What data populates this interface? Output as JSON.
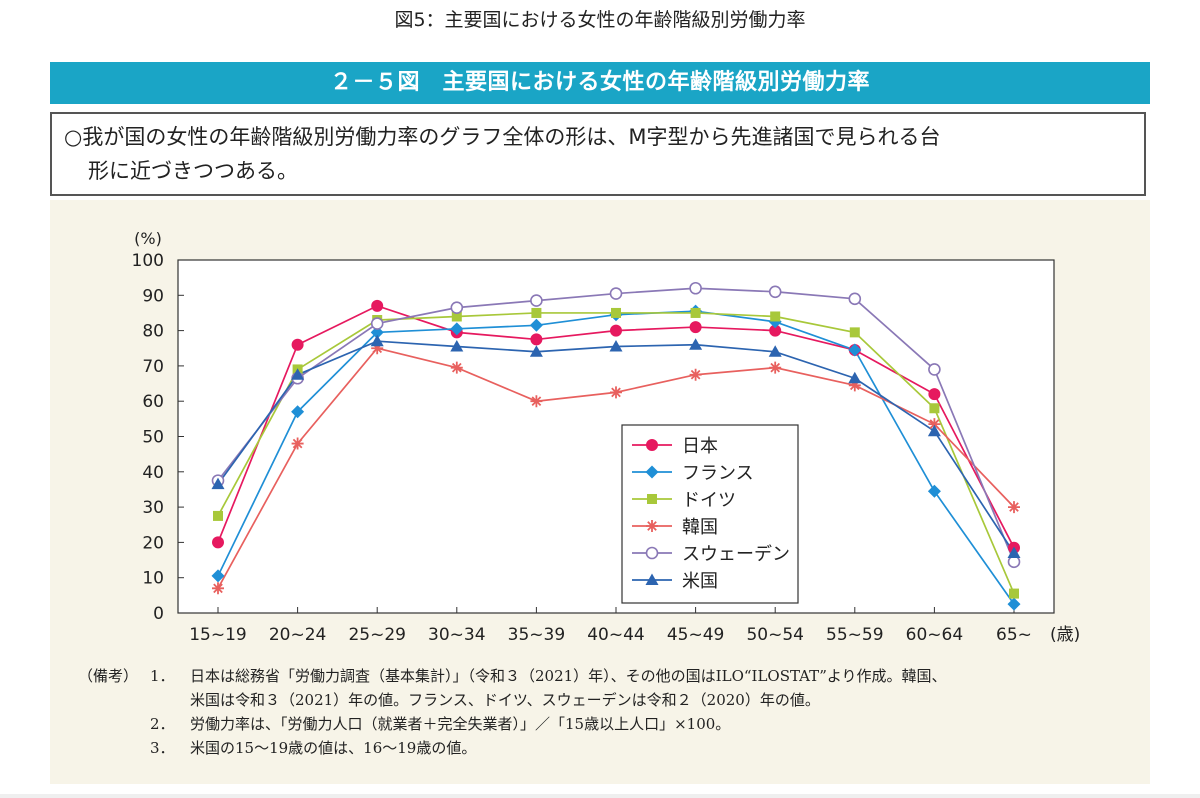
{
  "page_caption": "図5：主要国における女性の年齢階級別労働力率",
  "figure_header": "２－５図　主要国における女性の年齢階級別労働力率",
  "summary": {
    "line1": "○我が国の女性の年齢階級別労働力率のグラフ全体の形は、M字型から先進諸国で見られる台",
    "line2": "形に近づきつつある。"
  },
  "notes": {
    "lead": "（備考）",
    "items": [
      {
        "num": "1．",
        "text": "日本は総務省「労働力調査（基本集計）」（令和３（2021）年）、その他の国はILO“ILOSTAT”より作成。韓国、",
        "cont": "米国は令和３（2021）年の値。フランス、ドイツ、スウェーデンは令和２（2020）年の値。"
      },
      {
        "num": "2．",
        "text": "労働力率は、「労働力人口（就業者＋完全失業者）」／「15歳以上人口」×100。"
      },
      {
        "num": "3．",
        "text": "米国の15～19歳の値は、16～19歳の値。"
      }
    ]
  },
  "chart_data": {
    "type": "line",
    "ylabel": "(%)",
    "xlabel": "(歳)",
    "ylim": [
      0,
      100
    ],
    "yticks": [
      0,
      10,
      20,
      30,
      40,
      50,
      60,
      70,
      80,
      90,
      100
    ],
    "grid": false,
    "legend_position": "center-right",
    "categories": [
      "15~19",
      "20~24",
      "25~29",
      "30~34",
      "35~39",
      "40~44",
      "45~49",
      "50~54",
      "55~59",
      "60~64",
      "65~"
    ],
    "series": [
      {
        "name": "日本",
        "color": "#e6195f",
        "marker": "circle-filled",
        "values": [
          20,
          76,
          87,
          79.5,
          77.5,
          80,
          81,
          80,
          74.5,
          62,
          18.5
        ]
      },
      {
        "name": "フランス",
        "color": "#1f8fd6",
        "marker": "diamond",
        "values": [
          10.5,
          57,
          79.5,
          80.5,
          81.5,
          84.5,
          85.5,
          82.5,
          74.5,
          34.5,
          2.5
        ]
      },
      {
        "name": "ドイツ",
        "color": "#a8c83a",
        "marker": "square",
        "values": [
          27.5,
          69,
          83,
          84,
          85,
          85,
          85,
          84,
          79.5,
          58,
          5.5
        ]
      },
      {
        "name": "韓国",
        "color": "#e8605e",
        "marker": "asterisk",
        "values": [
          7,
          48,
          75,
          69.5,
          60,
          62.5,
          67.5,
          69.5,
          64.5,
          53.5,
          30
        ]
      },
      {
        "name": "スウェーデン",
        "color": "#8a78b6",
        "marker": "circle-open",
        "values": [
          37.5,
          66.5,
          82,
          86.5,
          88.5,
          90.5,
          92,
          91,
          89,
          69,
          14.5
        ]
      },
      {
        "name": "米国",
        "color": "#2c64b0",
        "marker": "triangle",
        "values": [
          36.5,
          67.5,
          77,
          75.5,
          74,
          75.5,
          76,
          74,
          66.5,
          51.5,
          17
        ]
      }
    ]
  }
}
